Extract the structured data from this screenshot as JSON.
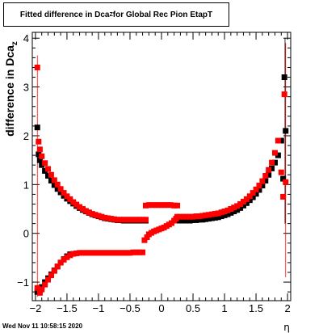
{
  "chart_data": {
    "type": "scatter",
    "title": "Fitted difference in Dca",
    "title_subscript": "Z",
    "title_suffix": " for Global Rec Pion EtapT",
    "xlabel": "η",
    "ylabel": "difference in Dca",
    "ylabel_subscript": "z",
    "xlim": [
      -2.05,
      2.05
    ],
    "ylim": [
      -1.38,
      4.12
    ],
    "xticks": [
      -2,
      -1.5,
      -1,
      -0.5,
      0,
      0.5,
      1,
      1.5,
      2
    ],
    "xtick_labels": [
      "−2",
      "−1.5",
      "−1",
      "−0.5",
      "0",
      "0.5",
      "1",
      "1.5",
      "2"
    ],
    "yticks": [
      -1,
      0,
      1,
      2,
      3,
      4
    ],
    "ytick_labels": [
      "−1",
      "0",
      "1",
      "2",
      "3",
      "4"
    ],
    "grid": true,
    "series": [
      {
        "color": "#000000",
        "marker": "square",
        "x": [
          -1.97,
          -1.95,
          -1.93,
          -1.9,
          -1.85,
          -1.8,
          -1.75,
          -1.7,
          -1.65,
          -1.6,
          -1.55,
          -1.5,
          -1.45,
          -1.4,
          -1.35,
          -1.3,
          -1.25,
          -1.2,
          -1.15,
          -1.1,
          -1.05,
          -1.0,
          -0.95,
          -0.9,
          -0.85,
          -0.8,
          -0.75,
          -0.7,
          -0.65,
          -0.6,
          -0.55,
          -0.5,
          -0.45,
          -0.4,
          -0.35,
          -0.3,
          -0.25,
          0.25,
          0.3,
          0.35,
          0.4,
          0.45,
          0.5,
          0.55,
          0.6,
          0.65,
          0.7,
          0.75,
          0.8,
          0.85,
          0.9,
          0.95,
          1.0,
          1.05,
          1.1,
          1.15,
          1.2,
          1.25,
          1.3,
          1.35,
          1.4,
          1.45,
          1.5,
          1.55,
          1.6,
          1.65,
          1.7,
          1.75,
          1.8,
          1.85,
          1.9,
          1.93,
          1.95,
          1.97
        ],
        "y": [
          2.17,
          1.62,
          1.5,
          1.4,
          1.28,
          1.18,
          1.08,
          0.99,
          0.91,
          0.84,
          0.77,
          0.71,
          0.66,
          0.61,
          0.56,
          0.52,
          0.48,
          0.45,
          0.42,
          0.39,
          0.37,
          0.35,
          0.33,
          0.31,
          0.3,
          0.29,
          0.28,
          0.27,
          0.27,
          0.26,
          0.26,
          0.26,
          0.26,
          0.26,
          0.26,
          0.26,
          0.26,
          0.26,
          0.26,
          0.26,
          0.26,
          0.26,
          0.27,
          0.27,
          0.28,
          0.28,
          0.29,
          0.3,
          0.31,
          0.32,
          0.33,
          0.35,
          0.37,
          0.39,
          0.42,
          0.45,
          0.48,
          0.52,
          0.57,
          0.62,
          0.68,
          0.74,
          0.81,
          0.89,
          0.98,
          1.08,
          1.2,
          1.33,
          1.45,
          1.6,
          1.9,
          1.12,
          3.2,
          2.1
        ]
      },
      {
        "color": "#000000",
        "marker": "square",
        "x": [
          -1.97,
          -1.93,
          -1.9,
          -1.85,
          -1.8,
          -1.75,
          -1.7,
          -1.65,
          -1.6,
          -1.55,
          -1.5,
          -1.45
        ],
        "y": [
          -1.2,
          -1.18,
          -1.1,
          -1.0,
          -0.92,
          -0.84,
          -0.76,
          -0.68,
          -0.6,
          -0.53,
          -0.47,
          -0.43
        ]
      },
      {
        "color": "#ff0000",
        "marker": "square",
        "x": [
          -1.97,
          -1.95,
          -1.93,
          -1.9,
          -1.85,
          -1.8,
          -1.75,
          -1.7,
          -1.65,
          -1.6,
          -1.55,
          -1.5,
          -1.45,
          -1.4,
          -1.35,
          -1.3,
          -1.25,
          -1.2,
          -1.15,
          -1.1,
          -1.05,
          -1.0,
          -0.95,
          -0.9,
          -0.85,
          -0.8,
          -0.75,
          -0.7,
          -0.65,
          -0.6,
          -0.55,
          -0.5,
          -0.45,
          -0.4,
          -0.35,
          -0.3,
          -0.25,
          0.25,
          0.3,
          0.35,
          0.4,
          0.45,
          0.5,
          0.55,
          0.6,
          0.65,
          0.7,
          0.75,
          0.8,
          0.85,
          0.9,
          0.95,
          1.0,
          1.05,
          1.1,
          1.15,
          1.2,
          1.25,
          1.3,
          1.35,
          1.4,
          1.45,
          1.5,
          1.55,
          1.6,
          1.65,
          1.7,
          1.75,
          1.8,
          1.85,
          1.9,
          1.93,
          1.95,
          1.97
        ],
        "y": [
          3.4,
          1.88,
          1.72,
          1.58,
          1.44,
          1.32,
          1.2,
          1.09,
          1.0,
          0.91,
          0.83,
          0.76,
          0.7,
          0.64,
          0.59,
          0.54,
          0.5,
          0.46,
          0.43,
          0.4,
          0.38,
          0.36,
          0.34,
          0.32,
          0.31,
          0.3,
          0.29,
          0.28,
          0.28,
          0.28,
          0.28,
          0.28,
          0.28,
          0.28,
          0.28,
          0.28,
          0.28,
          0.34,
          0.34,
          0.34,
          0.34,
          0.34,
          0.34,
          0.35,
          0.35,
          0.36,
          0.37,
          0.38,
          0.39,
          0.4,
          0.41,
          0.43,
          0.45,
          0.47,
          0.5,
          0.53,
          0.56,
          0.6,
          0.65,
          0.7,
          0.76,
          0.83,
          0.9,
          0.98,
          1.07,
          1.18,
          1.3,
          1.45,
          1.65,
          1.9,
          1.25,
          0.75,
          2.85,
          1.05
        ]
      },
      {
        "color": "#ff0000",
        "marker": "square",
        "x": [
          -1.97,
          -1.93,
          -1.9,
          -1.85,
          -1.8,
          -1.75,
          -1.7,
          -1.65,
          -1.6,
          -1.55,
          -1.5,
          -1.45,
          -1.4,
          -1.35,
          -1.3,
          -1.25,
          -1.2,
          -1.15,
          -1.1,
          -1.05,
          -1.0,
          -0.95,
          -0.9,
          -0.85,
          -0.8,
          -0.75,
          -0.7,
          -0.65,
          -0.6,
          -0.55,
          -0.5,
          -0.45,
          -0.4,
          -0.35,
          -0.3
        ],
        "y": [
          -1.12,
          -1.22,
          -1.15,
          -1.05,
          -0.95,
          -0.86,
          -0.77,
          -0.68,
          -0.6,
          -0.54,
          -0.49,
          -0.45,
          -0.42,
          -0.41,
          -0.4,
          -0.4,
          -0.4,
          -0.4,
          -0.4,
          -0.4,
          -0.4,
          -0.4,
          -0.4,
          -0.4,
          -0.4,
          -0.4,
          -0.4,
          -0.4,
          -0.4,
          -0.4,
          -0.4,
          -0.39,
          -0.39,
          -0.39,
          -0.39
        ]
      },
      {
        "color": "#ff0000",
        "marker": "square",
        "x": [
          -0.27,
          -0.23,
          -0.2,
          -0.16,
          -0.12,
          -0.08,
          -0.04,
          0.0,
          0.04,
          0.08,
          0.12,
          0.16,
          0.2,
          0.23
        ],
        "y": [
          -0.14,
          -0.08,
          -0.02,
          0.01,
          0.04,
          0.06,
          0.08,
          0.1,
          0.12,
          0.15,
          0.18,
          0.21,
          0.26,
          0.3
        ]
      },
      {
        "color": "#ff0000",
        "marker": "square",
        "x": [
          -0.25,
          -0.2,
          -0.15,
          -0.1,
          -0.05,
          0.0,
          0.05,
          0.1,
          0.15,
          0.2,
          0.25
        ],
        "y": [
          0.57,
          0.58,
          0.58,
          0.58,
          0.58,
          0.58,
          0.58,
          0.58,
          0.58,
          0.57,
          0.57
        ]
      }
    ]
  },
  "footer": {
    "timestamp": "Wed Nov 11 10:58:15 2020"
  }
}
